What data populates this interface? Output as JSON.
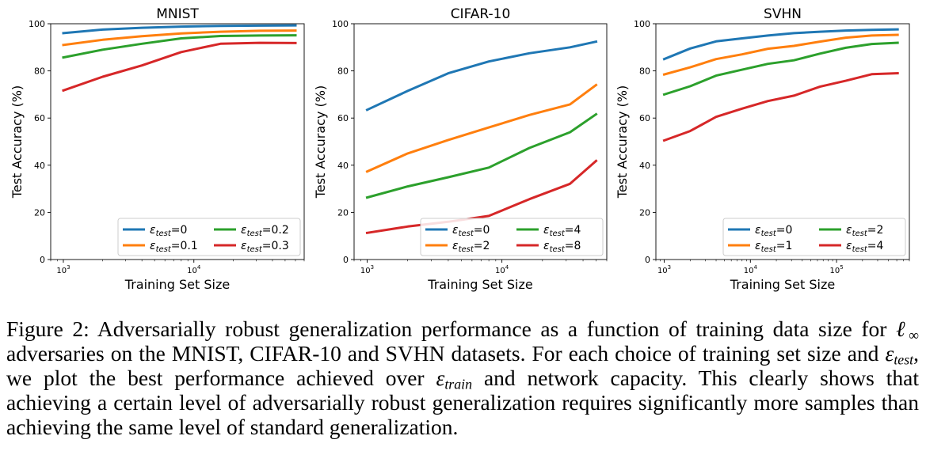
{
  "chart_data": [
    {
      "type": "line",
      "title": "MNIST",
      "xlabel": "Training Set Size",
      "ylabel": "Test Accuracy (%)",
      "xscale": "log",
      "xlim": [
        800,
        70000
      ],
      "ylim": [
        0,
        100
      ],
      "yticks": [
        "0",
        "20",
        "40",
        "60",
        "80",
        "100"
      ],
      "xticks": [
        {
          "value": 1000,
          "base": "10",
          "exp": "3"
        },
        {
          "value": 10000,
          "base": "10",
          "exp": "4"
        }
      ],
      "grid": false,
      "legend_position": "lower-right",
      "x": [
        1000,
        2000,
        4000,
        8000,
        16000,
        32000,
        60000
      ],
      "series": [
        {
          "name": "=0",
          "subscript": "test",
          "color": "#1f77b4",
          "values": [
            96,
            97.5,
            98.3,
            98.8,
            99.1,
            99.2,
            99.3
          ]
        },
        {
          "name": "=0.1",
          "subscript": "test",
          "color": "#ff7f0e",
          "values": [
            91,
            93.2,
            94.7,
            95.9,
            96.6,
            97,
            97.1
          ]
        },
        {
          "name": "=0.2",
          "subscript": "test",
          "color": "#2ca02c",
          "values": [
            85.7,
            89,
            91.5,
            93.8,
            94.8,
            95,
            95.1
          ]
        },
        {
          "name": "=0.3",
          "subscript": "test",
          "color": "#d62728",
          "values": [
            71.7,
            77.5,
            82.3,
            88,
            91.5,
            91.9,
            91.8
          ]
        }
      ]
    },
    {
      "type": "line",
      "title": "CIFAR-10",
      "xlabel": "Training Set Size",
      "ylabel": "Test Accuracy (%)",
      "xscale": "log",
      "xlim": [
        800,
        60000
      ],
      "ylim": [
        0,
        100
      ],
      "yticks": [
        "0",
        "20",
        "40",
        "60",
        "80",
        "100"
      ],
      "xticks": [
        {
          "value": 1000,
          "base": "10",
          "exp": "3"
        },
        {
          "value": 10000,
          "base": "10",
          "exp": "4"
        }
      ],
      "grid": false,
      "legend_position": "lower-right",
      "x": [
        1000,
        2000,
        4000,
        8000,
        16000,
        32000,
        50000
      ],
      "series": [
        {
          "name": "=0",
          "subscript": "test",
          "color": "#1f77b4",
          "values": [
            63.5,
            71.5,
            79,
            84,
            87.5,
            90,
            92.4
          ]
        },
        {
          "name": "=2",
          "subscript": "test",
          "color": "#ff7f0e",
          "values": [
            37.3,
            45,
            50.7,
            56,
            61.3,
            65.8,
            74
          ]
        },
        {
          "name": "=4",
          "subscript": "test",
          "color": "#2ca02c",
          "values": [
            26.3,
            31,
            34.9,
            39,
            47.3,
            54,
            61.6
          ]
        },
        {
          "name": "=8",
          "subscript": "test",
          "color": "#d62728",
          "values": [
            11.3,
            14,
            16,
            18.5,
            25.6,
            32.1,
            41.8
          ]
        }
      ]
    },
    {
      "type": "line",
      "title": "SVHN",
      "xlabel": "Training Set Size",
      "ylabel": "Test Accuracy (%)",
      "xscale": "log",
      "xlim": [
        800,
        700000
      ],
      "ylim": [
        0,
        100
      ],
      "yticks": [
        "0",
        "20",
        "40",
        "60",
        "80",
        "100"
      ],
      "xticks": [
        {
          "value": 1000,
          "base": "10",
          "exp": "3"
        },
        {
          "value": 10000,
          "base": "10",
          "exp": "4"
        },
        {
          "value": 100000,
          "base": "10",
          "exp": "5"
        }
      ],
      "grid": false,
      "legend_position": "lower-right",
      "x": [
        1000,
        2000,
        4000,
        8000,
        16000,
        32000,
        64000,
        128000,
        256000,
        512000
      ],
      "series": [
        {
          "name": "=0",
          "subscript": "test",
          "color": "#1f77b4",
          "values": [
            85,
            89.5,
            92.5,
            93.8,
            95,
            96,
            96.6,
            97.1,
            97.4,
            97.6
          ]
        },
        {
          "name": "=1",
          "subscript": "test",
          "color": "#ff7f0e",
          "values": [
            78.5,
            81.5,
            85,
            87,
            89.4,
            90.6,
            92.4,
            94.1,
            95,
            95.3
          ]
        },
        {
          "name": "=2",
          "subscript": "test",
          "color": "#2ca02c",
          "values": [
            70,
            73.5,
            78,
            80.5,
            83,
            84.5,
            87.3,
            89.8,
            91.4,
            91.9
          ]
        },
        {
          "name": "=4",
          "subscript": "test",
          "color": "#d62728",
          "values": [
            50.5,
            54.5,
            60.5,
            64,
            67.2,
            69.5,
            73.3,
            75.8,
            78.6,
            79
          ]
        }
      ]
    }
  ],
  "caption": {
    "label": "Figure 2:",
    "part1": "Adversarially robust generalization performance as a function of training data size for",
    "linf_symbol": "ℓ",
    "linf_sub": "∞",
    "part2": "adversaries on the MNIST, CIFAR-10 and SVHN datasets. For each choice of training set size and",
    "eps_symbol": "ε",
    "eps_test_sub": "test",
    "part3": ", we plot the best performance achieved over",
    "eps_train_sub": "train",
    "part4": "and network capacity. This clearly shows that achieving a certain level of adversarially robust generalization requires significantly more samples than achieving the same level of standard generalization."
  }
}
